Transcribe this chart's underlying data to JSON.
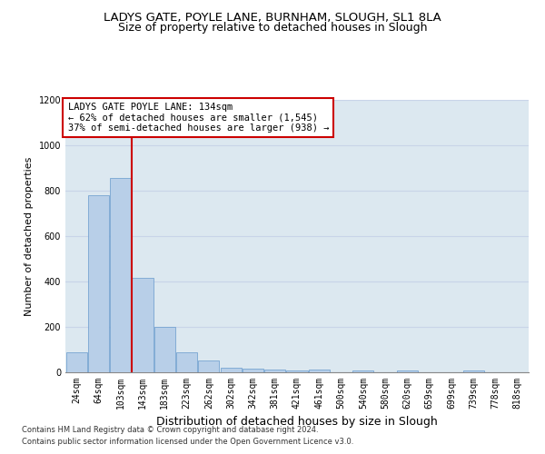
{
  "title": "LADYS GATE, POYLE LANE, BURNHAM, SLOUGH, SL1 8LA",
  "subtitle": "Size of property relative to detached houses in Slough",
  "xlabel": "Distribution of detached houses by size in Slough",
  "ylabel": "Number of detached properties",
  "categories": [
    "24sqm",
    "64sqm",
    "103sqm",
    "143sqm",
    "183sqm",
    "223sqm",
    "262sqm",
    "302sqm",
    "342sqm",
    "381sqm",
    "421sqm",
    "461sqm",
    "500sqm",
    "540sqm",
    "580sqm",
    "620sqm",
    "659sqm",
    "699sqm",
    "739sqm",
    "778sqm",
    "818sqm"
  ],
  "values": [
    90,
    780,
    855,
    415,
    200,
    90,
    52,
    22,
    15,
    12,
    10,
    12,
    0,
    10,
    0,
    10,
    0,
    0,
    10,
    0,
    0
  ],
  "bar_color": "#b8cfe8",
  "bar_edge_color": "#6699cc",
  "annotation_text": "LADYS GATE POYLE LANE: 134sqm\n← 62% of detached houses are smaller (1,545)\n37% of semi-detached houses are larger (938) →",
  "annotation_box_color": "#ffffff",
  "annotation_box_edge_color": "#cc0000",
  "annotation_line_color": "#cc0000",
  "footnote_line1": "Contains HM Land Registry data © Crown copyright and database right 2024.",
  "footnote_line2": "Contains public sector information licensed under the Open Government Licence v3.0.",
  "ylim": [
    0,
    1200
  ],
  "yticks": [
    0,
    200,
    400,
    600,
    800,
    1000,
    1200
  ],
  "grid_color": "#c8d4e8",
  "background_color": "#dce8f0",
  "title_fontsize": 9.5,
  "subtitle_fontsize": 9,
  "xlabel_fontsize": 9,
  "ylabel_fontsize": 8,
  "tick_fontsize": 7,
  "annotation_fontsize": 7.5,
  "footnote_fontsize": 6,
  "red_line_x": 2.5
}
